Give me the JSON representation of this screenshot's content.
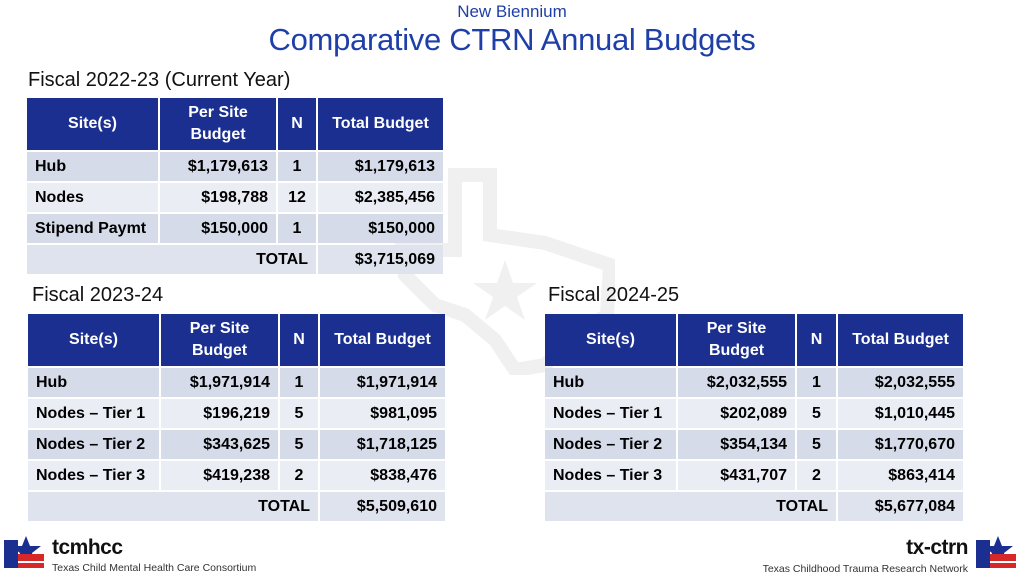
{
  "header": {
    "subtitle": "New Biennium",
    "title": "Comparative CTRN Annual Budgets"
  },
  "columns": {
    "site": "Site(s)",
    "per_site_line1": "Per Site",
    "per_site_line2": "Budget",
    "n": "N",
    "total": "Total Budget"
  },
  "fy2223": {
    "label": "Fiscal 2022-23 (Current Year)",
    "rows": [
      {
        "site": "Hub",
        "per_site": "$1,179,613",
        "n": "1",
        "total": "$1,179,613"
      },
      {
        "site": "Nodes",
        "per_site": "$198,788",
        "n": "12",
        "total": "$2,385,456"
      },
      {
        "site": "Stipend Paymt",
        "per_site": "$150,000",
        "n": "1",
        "total": "$150,000"
      }
    ],
    "total_label": "TOTAL",
    "total_value": "$3,715,069"
  },
  "fy2324": {
    "label": "Fiscal 2023-24",
    "rows": [
      {
        "site": "Hub",
        "per_site": "$1,971,914",
        "n": "1",
        "total": "$1,971,914"
      },
      {
        "site": "Nodes – Tier 1",
        "per_site": "$196,219",
        "n": "5",
        "total": "$981,095"
      },
      {
        "site": "Nodes – Tier 2",
        "per_site": "$343,625",
        "n": "5",
        "total": "$1,718,125"
      },
      {
        "site": "Nodes – Tier 3",
        "per_site": "$419,238",
        "n": "2",
        "total": "$838,476"
      }
    ],
    "total_label": "TOTAL",
    "total_value": "$5,509,610"
  },
  "fy2425": {
    "label": "Fiscal 2024-25",
    "rows": [
      {
        "site": "Hub",
        "per_site": "$2,032,555",
        "n": "1",
        "total": "$2,032,555"
      },
      {
        "site": "Nodes – Tier 1",
        "per_site": "$202,089",
        "n": "5",
        "total": "$1,010,445"
      },
      {
        "site": "Nodes – Tier 2",
        "per_site": "$354,134",
        "n": "5",
        "total": "$1,770,670"
      },
      {
        "site": "Nodes – Tier 3",
        "per_site": "$431,707",
        "n": "2",
        "total": "$863,414"
      }
    ],
    "total_label": "TOTAL",
    "total_value": "$5,677,084"
  },
  "footer": {
    "left_brand": "tcmhcc",
    "left_sub": "Texas Child Mental Health Care Consortium",
    "right_brand": "tx-ctrn",
    "right_sub": "Texas Childhood Trauma Research Network",
    "logo_icon": "texas-star-icon",
    "colors": {
      "blue": "#1a2f8f",
      "red": "#d62828"
    }
  }
}
